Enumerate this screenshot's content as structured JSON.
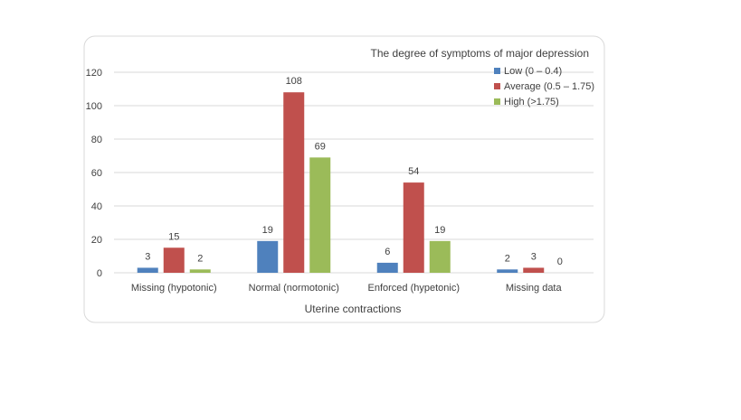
{
  "chart_data": {
    "type": "bar",
    "title": "",
    "xlabel": "Uterine contractions",
    "ylabel": "",
    "ylim": [
      0,
      120
    ],
    "yticks": [
      0,
      20,
      40,
      60,
      80,
      100,
      120
    ],
    "grid": true,
    "legend_title": "The degree of symptoms of major depression",
    "legend_position": "top-right",
    "categories": [
      "Missing (hypotonic)",
      "Normal (normotonic)",
      "Enforced (hypetonic)",
      "Missing data"
    ],
    "series": [
      {
        "name": "Low (0 – 0.4)",
        "color": "#4F81BD",
        "values": [
          3,
          19,
          6,
          2
        ]
      },
      {
        "name": "Average (0.5 – 1.75)",
        "color": "#C0504D",
        "values": [
          15,
          108,
          54,
          3
        ]
      },
      {
        "name": "High (>1.75)",
        "color": "#9BBB59",
        "values": [
          2,
          69,
          19,
          0
        ]
      }
    ]
  }
}
